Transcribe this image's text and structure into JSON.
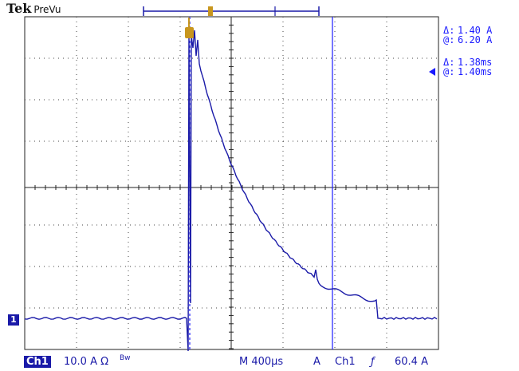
{
  "brand": {
    "name": "Tek",
    "mode": "PreVu"
  },
  "trigger_marker": {
    "label": "T"
  },
  "channel_marker": {
    "label": "1"
  },
  "cursors": {
    "amplitude": {
      "delta_symbol": "Δ:",
      "delta": "1.40 A",
      "at_symbol": "@:",
      "at": "6.20 A"
    },
    "time": {
      "delta_symbol": "Δ:",
      "delta": "1.38ms",
      "at_symbol": "@:",
      "at": "1.40ms"
    }
  },
  "status_bar": {
    "channel": "Ch1",
    "scale": "10.0 A Ω",
    "bw": "Bw",
    "timebase": "M 400μs",
    "delta": "A",
    "trigger_channel": "Ch1",
    "trigger_slope": "ƒ",
    "trigger_level": "60.4 A"
  },
  "colors": {
    "trace": "#1a1aa8",
    "grid": "#333333",
    "cursor": "#1a1aff",
    "trigger": "#c8961e",
    "background": "#ffffff"
  }
}
